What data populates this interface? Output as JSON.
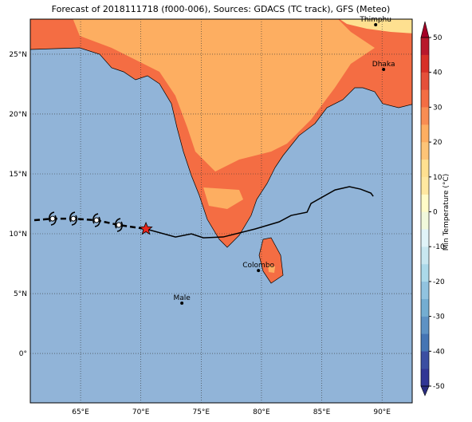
{
  "title": "Forecast of 2018111718 (f000-006), Sources: GDACS (TC track), GFS (Meteo)",
  "map": {
    "lon_range": [
      60.83,
      92.5
    ],
    "lat_range": [
      -4.13,
      27.93
    ],
    "lon_ticks": [
      {
        "value": 65,
        "label": "65°E"
      },
      {
        "value": 70,
        "label": "70°E"
      },
      {
        "value": 75,
        "label": "75°E"
      },
      {
        "value": 80,
        "label": "80°E"
      },
      {
        "value": 85,
        "label": "85°E"
      },
      {
        "value": 90,
        "label": "90°E"
      }
    ],
    "lat_ticks": [
      {
        "value": 25,
        "label": "25°N"
      },
      {
        "value": 20,
        "label": "20°N"
      },
      {
        "value": 15,
        "label": "15°N"
      },
      {
        "value": 10,
        "label": "10°N"
      },
      {
        "value": 5,
        "label": "5°N"
      },
      {
        "value": 0,
        "label": "0°"
      }
    ],
    "cities": [
      {
        "name": "Thimphu",
        "lon": 89.47,
        "lat": 27.46
      },
      {
        "name": "Dhaka",
        "lon": 90.13,
        "lat": 23.73
      },
      {
        "name": "Colombo",
        "lon": 79.75,
        "lat": 6.93
      },
      {
        "name": "Male",
        "lon": 73.4,
        "lat": 4.2
      }
    ],
    "forecast_track": {
      "lon": [
        61.16,
        62.68,
        64.4,
        66.32,
        68.17,
        70.42
      ],
      "lat": [
        11.13,
        11.26,
        11.26,
        11.13,
        10.73,
        10.4
      ]
    },
    "past_track": {
      "lon": [
        70.42,
        72.87,
        74.19,
        75.18,
        76.83,
        79.48,
        81.46,
        82.46,
        83.78,
        84.11,
        86.1,
        87.29,
        88.21,
        89.07,
        89.27
      ],
      "lat": [
        10.4,
        9.73,
        9.99,
        9.66,
        9.73,
        10.4,
        10.99,
        11.53,
        11.8,
        12.53,
        13.66,
        13.93,
        13.73,
        13.4,
        13.13
      ]
    },
    "current_position": {
      "lon": 70.42,
      "lat": 10.4
    }
  },
  "colorbar": {
    "label": "Min Temperature (°C)",
    "range": [
      -50,
      50
    ],
    "ticks": [
      50,
      40,
      30,
      20,
      10,
      0,
      -10,
      -20,
      -30,
      -40,
      -50
    ],
    "colors": [
      "#313695",
      "#3b4ea2",
      "#4575b4",
      "#5e92c4",
      "#74add1",
      "#91c3df",
      "#abd9e9",
      "#c8e7f0",
      "#e0f3f8",
      "#f1f9db",
      "#fffcc8",
      "#fee8a0",
      "#fee090",
      "#fdc477",
      "#fdae61",
      "#f88d52",
      "#f46d43",
      "#e5503a",
      "#d73027",
      "#b8182b"
    ],
    "under_color": "#2a2d80",
    "over_color": "#a50026"
  }
}
